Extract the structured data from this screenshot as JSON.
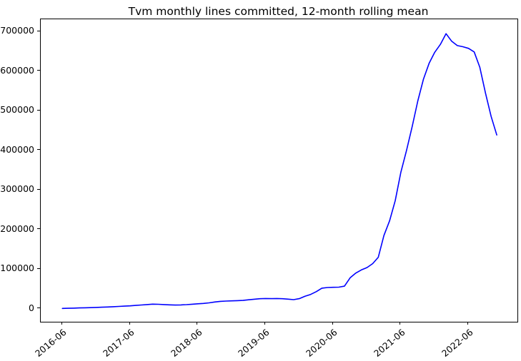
{
  "title": "Tvm monthly lines committed, 12-month rolling mean",
  "chart_data": {
    "type": "line",
    "title": "Tvm monthly lines committed, 12-month rolling mean",
    "xlabel": "",
    "ylabel": "",
    "grid": false,
    "legend": "none",
    "axes_box": true,
    "line_color": "#0000ff",
    "y_ticks": [
      0,
      100000,
      200000,
      300000,
      400000,
      500000,
      600000,
      700000
    ],
    "y_tick_labels": [
      "0",
      "100000",
      "200000",
      "300000",
      "400000",
      "500000",
      "600000",
      "700000"
    ],
    "x_tick_labels": [
      "2016-06",
      "2017-06",
      "2018-06",
      "2019-06",
      "2020-06",
      "2021-06",
      "2022-06"
    ],
    "x_tick_months": [
      0,
      12,
      24,
      36,
      48,
      60,
      72
    ],
    "xlim_months": [
      -3.84,
      80.66
    ],
    "ylim": [
      -33000,
      731500
    ],
    "series": [
      {
        "name": "lines committed, 12-month rolling mean",
        "color": "#0000ff",
        "x": [
          "2016-06",
          "2016-07",
          "2016-08",
          "2016-09",
          "2016-10",
          "2016-11",
          "2016-12",
          "2017-01",
          "2017-02",
          "2017-03",
          "2017-04",
          "2017-05",
          "2017-06",
          "2017-07",
          "2017-08",
          "2017-09",
          "2017-10",
          "2017-11",
          "2017-12",
          "2018-01",
          "2018-02",
          "2018-03",
          "2018-04",
          "2018-05",
          "2018-06",
          "2018-07",
          "2018-08",
          "2018-09",
          "2018-10",
          "2018-11",
          "2018-12",
          "2019-01",
          "2019-02",
          "2019-03",
          "2019-04",
          "2019-05",
          "2019-06",
          "2019-07",
          "2019-08",
          "2019-09",
          "2019-10",
          "2019-11",
          "2019-12",
          "2020-01",
          "2020-02",
          "2020-03",
          "2020-04",
          "2020-05",
          "2020-06",
          "2020-07",
          "2020-08",
          "2020-09",
          "2020-10",
          "2020-11",
          "2020-12",
          "2021-01",
          "2021-02",
          "2021-03",
          "2021-04",
          "2021-05",
          "2021-06",
          "2021-07",
          "2021-08",
          "2021-09",
          "2021-10",
          "2021-11",
          "2021-12",
          "2022-01",
          "2022-02",
          "2022-03",
          "2022-04",
          "2022-05",
          "2022-06",
          "2022-07",
          "2022-08",
          "2022-09",
          "2022-10",
          "2022-11"
        ],
        "values": [
          800,
          1100,
          1500,
          1900,
          2300,
          2700,
          3200,
          3800,
          4400,
          5100,
          5800,
          6500,
          7200,
          8300,
          9400,
          10500,
          11500,
          11200,
          10400,
          9700,
          9200,
          9500,
          10300,
          11300,
          12500,
          13400,
          14800,
          16900,
          18600,
          19300,
          19900,
          20400,
          21000,
          22600,
          24000,
          25200,
          25800,
          25400,
          25800,
          25300,
          24100,
          22900,
          25400,
          31400,
          36100,
          43000,
          52000,
          53500,
          54000,
          54500,
          57000,
          78000,
          90000,
          98000,
          104000,
          114000,
          130000,
          185000,
          222000,
          273000,
          345000,
          400000,
          460000,
          525000,
          580000,
          620000,
          648000,
          668000,
          695000,
          676000,
          665000,
          662000,
          658000,
          649000,
          610000,
          545000,
          486000,
          439000
        ]
      }
    ]
  }
}
